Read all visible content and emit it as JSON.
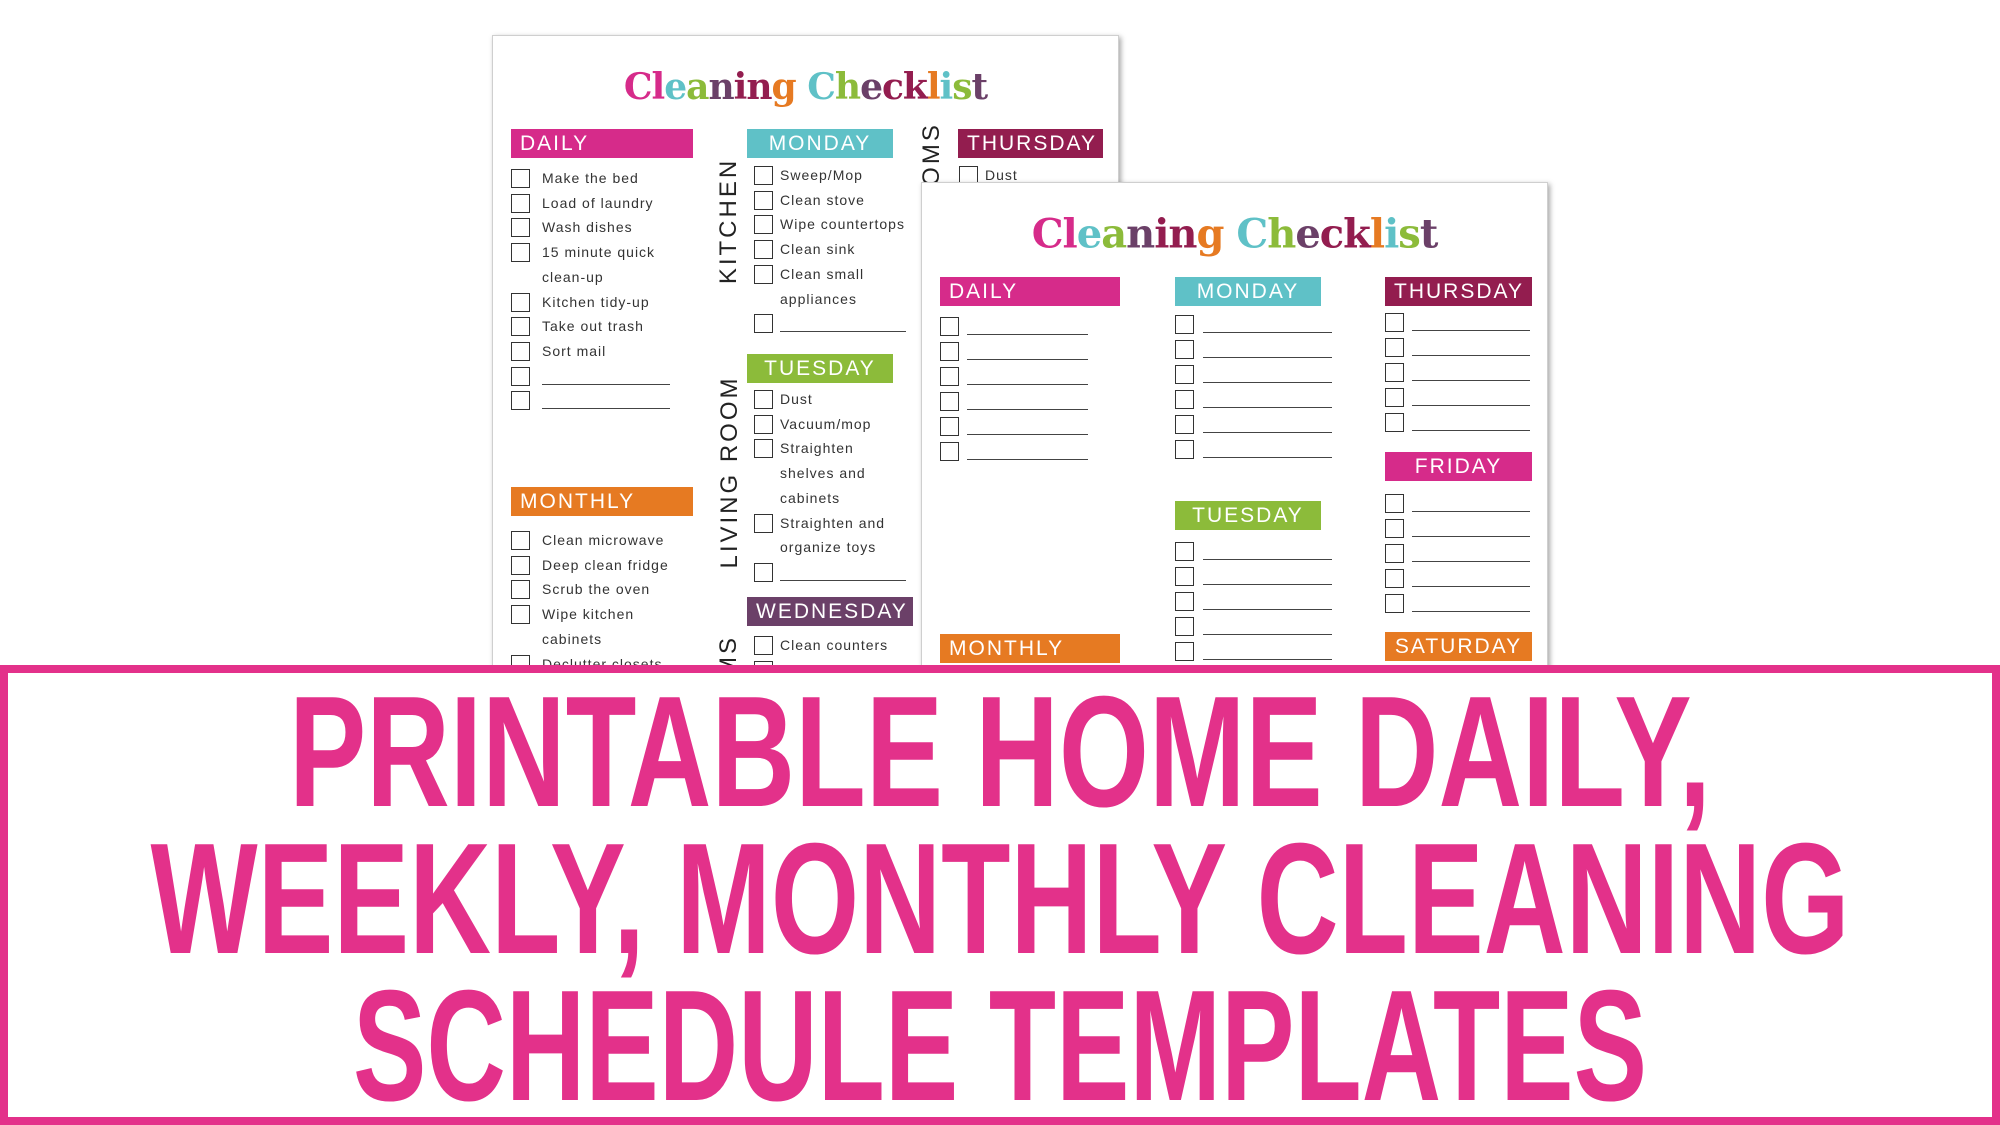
{
  "colors": {
    "pink": "#d62b8a",
    "teal": "#5fc1c7",
    "green": "#8cbb3a",
    "purple": "#6b4068",
    "maroon": "#931d4f",
    "orange": "#e67a22",
    "banner": "#e3318a"
  },
  "checklist_title": {
    "text": "Cleaning Checklist",
    "letter_colors": [
      "#d62b8a",
      "#d62b8a",
      "#5fc1c7",
      "#8cbb3a",
      "#6b4068",
      "#931d4f",
      "#931d4f",
      "#e67a22",
      "#ffffff",
      "#5fc1c7",
      "#8cbb3a",
      "#6b4068",
      "#931d4f",
      "#931d4f",
      "#e67a22",
      "#5fc1c7",
      "#8cbb3a",
      "#6b4068"
    ]
  },
  "page1": {
    "room_labels": [
      "KITCHEN",
      "LIVING ROOM",
      "MS",
      "OMS"
    ],
    "sections": [
      {
        "id": "daily",
        "label": "DAILY",
        "color": "#d62b8a",
        "items": [
          {
            "t": "Make the bed",
            "c": true
          },
          {
            "t": "Load of laundry",
            "c": true
          },
          {
            "t": "Wash dishes",
            "c": true
          },
          {
            "t": "15 minute quick",
            "c": true
          },
          {
            "t": "clean-up",
            "c": false
          },
          {
            "t": "Kitchen tidy-up",
            "c": true
          },
          {
            "t": "Take out trash",
            "c": true
          },
          {
            "t": "Sort mail",
            "c": true
          },
          {
            "t": "",
            "c": true
          },
          {
            "t": "",
            "c": true
          }
        ]
      },
      {
        "id": "monthly",
        "label": "MONTHLY",
        "color": "#e67a22",
        "items": [
          {
            "t": "Clean microwave",
            "c": true
          },
          {
            "t": "Deep clean fridge",
            "c": true
          },
          {
            "t": "Scrub the oven",
            "c": true
          },
          {
            "t": "Wipe kitchen",
            "c": true
          },
          {
            "t": "cabinets",
            "c": false
          },
          {
            "t": "Declutter closets",
            "c": true
          }
        ]
      },
      {
        "id": "monday",
        "label": "MONDAY",
        "color": "#5fc1c7",
        "items": [
          {
            "t": "Sweep/Mop",
            "c": true
          },
          {
            "t": "Clean stove",
            "c": true
          },
          {
            "t": "Wipe countertops",
            "c": true
          },
          {
            "t": "Clean sink",
            "c": true
          },
          {
            "t": "Clean small",
            "c": true
          },
          {
            "t": "appliances",
            "c": false
          },
          {
            "t": "",
            "c": true
          }
        ]
      },
      {
        "id": "tuesday",
        "label": "TUESDAY",
        "color": "#8cbb3a",
        "items": [
          {
            "t": "Dust",
            "c": true
          },
          {
            "t": "Vacuum/mop",
            "c": true
          },
          {
            "t": "Straighten",
            "c": true
          },
          {
            "t": "shelves and",
            "c": false
          },
          {
            "t": "cabinets",
            "c": false
          },
          {
            "t": "Straighten and",
            "c": true
          },
          {
            "t": "organize toys",
            "c": false
          },
          {
            "t": "",
            "c": true
          }
        ]
      },
      {
        "id": "wednesday",
        "label": "WEDNESDAY",
        "color": "#6b4068",
        "items": [
          {
            "t": "Clean counters",
            "c": true
          },
          {
            "t": "",
            "c": true
          }
        ]
      },
      {
        "id": "thursday",
        "label": "THURSDAY",
        "color": "#931d4f",
        "items": [
          {
            "t": "Dust",
            "c": true
          }
        ]
      }
    ]
  },
  "page2": {
    "sections": [
      {
        "id": "daily",
        "label": "DAILY",
        "color": "#d62b8a",
        "rows": 6
      },
      {
        "id": "monthly",
        "label": "MONTHLY",
        "color": "#e67a22",
        "rows": 0
      },
      {
        "id": "monday",
        "label": "MONDAY",
        "color": "#5fc1c7",
        "rows": 6
      },
      {
        "id": "tuesday",
        "label": "TUESDAY",
        "color": "#8cbb3a",
        "rows": 5
      },
      {
        "id": "thursday",
        "label": "THURSDAY",
        "color": "#931d4f",
        "rows": 5
      },
      {
        "id": "friday",
        "label": "FRIDAY",
        "color": "#d62b8a",
        "rows": 5
      },
      {
        "id": "saturday",
        "label": "SATURDAY",
        "color": "#e67a22",
        "rows": 0
      }
    ]
  },
  "banner": {
    "lines": [
      "PRINTABLE HOME DAILY,",
      "WEEKLY, MONTHLY CLEANING",
      "SCHEDULE TEMPLATES"
    ]
  }
}
